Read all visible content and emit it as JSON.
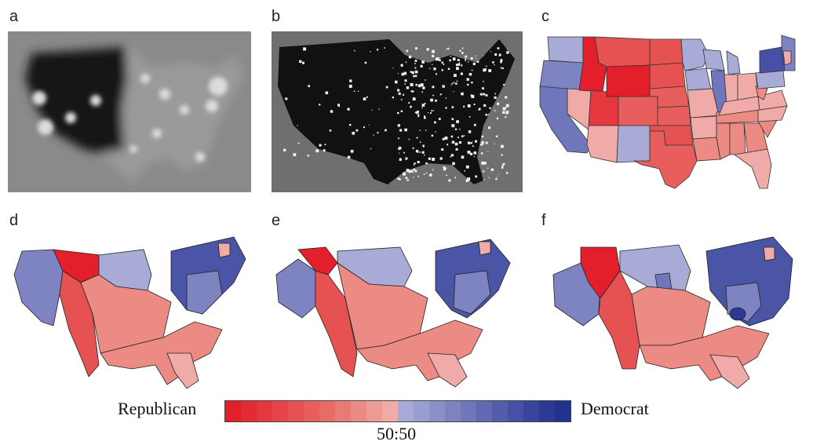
{
  "panels": [
    {
      "id": "a",
      "label": "a",
      "type": "blurred-density"
    },
    {
      "id": "b",
      "label": "b",
      "type": "population-dots"
    },
    {
      "id": "c",
      "label": "c",
      "type": "election-map"
    },
    {
      "id": "d",
      "label": "d",
      "type": "cartogram"
    },
    {
      "id": "e",
      "label": "e",
      "type": "cartogram"
    },
    {
      "id": "f",
      "label": "f",
      "type": "cartogram"
    }
  ],
  "legend": {
    "left_label": "Republican",
    "right_label": "Democrat",
    "center_label": "50:50",
    "colors": [
      "#e21f2a",
      "#e32b34",
      "#e4373e",
      "#e54448",
      "#e65152",
      "#e85e5d",
      "#e96b68",
      "#ea7a75",
      "#ec8a84",
      "#ee9a96",
      "#f0aaa8",
      "#a7aad6",
      "#9a9dcf",
      "#8c90c8",
      "#7d83c1",
      "#7076ba",
      "#6269b2",
      "#545cab",
      "#4650a4",
      "#39449d",
      "#2c3a95",
      "#22338f"
    ]
  },
  "colors": {
    "background_gray": "#8a8a8a",
    "dark_fill": "#141414",
    "strong_red": "#e0323a",
    "mid_red": "#e86a6c",
    "light_red": "#f0a2a4",
    "light_blue": "#a8abd6",
    "mid_blue": "#7e84c2",
    "dark_blue": "#4a55a5",
    "border": "#333333"
  }
}
